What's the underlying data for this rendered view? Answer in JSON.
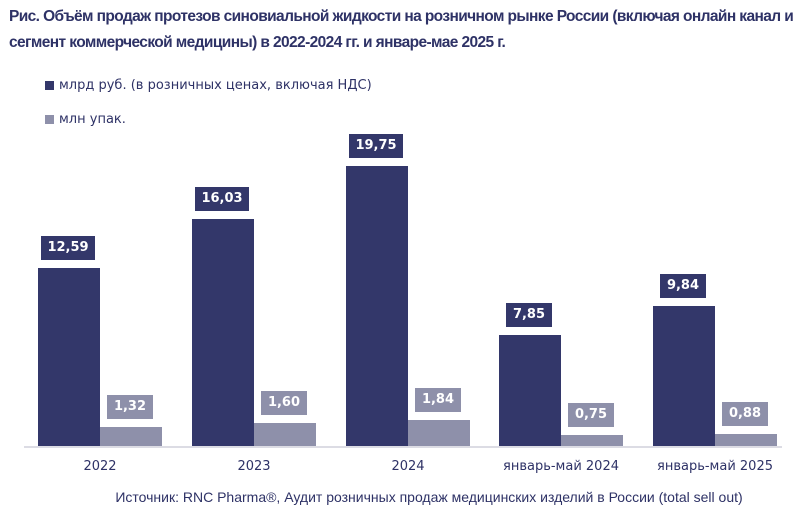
{
  "title": "Рис. Объём продаж протезов синовиальной жидкости на розничном рынке России (включая онлайн канал и сегмент коммерческой медицины) в 2022-2024 гг. и январе-мае 2025 г.",
  "legend": [
    {
      "label": "млрд руб. (в розничных ценах, включая НДС)",
      "color": "#33376a"
    },
    {
      "label": "млн упак.",
      "color": "#8e90aa"
    }
  ],
  "source": "Источник: RNC Pharma®, Аудит розничных продаж медицинских изделий в России (total sell out)",
  "chart_data": {
    "type": "bar",
    "title": "Рис. Объём продаж протезов синовиальной жидкости на розничном рынке России (включая онлайн канал и сегмент коммерческой медицины) в 2022-2024 гг. и январе-мае 2025 г.",
    "categories": [
      "2022",
      "2023",
      "2024",
      "январь-май 2024",
      "январь-май 2025"
    ],
    "series": [
      {
        "name": "млрд руб. (в розничных ценах, включая НДС)",
        "values": [
          12.59,
          16.03,
          19.75,
          7.85,
          9.84
        ],
        "labels": [
          "12,59",
          "16,03",
          "19,75",
          "7,85",
          "9,84"
        ],
        "color": "#33376a"
      },
      {
        "name": "млн упак.",
        "values": [
          1.32,
          1.6,
          1.84,
          0.75,
          0.88
        ],
        "labels": [
          "1,32",
          "1,60",
          "1,84",
          "0,75",
          "0,88"
        ],
        "color": "#8e90aa"
      }
    ],
    "xlabel": "",
    "ylabel": "",
    "grid": false,
    "y_axis_visible": false,
    "legend_position": "top-left",
    "data_labels": true
  }
}
